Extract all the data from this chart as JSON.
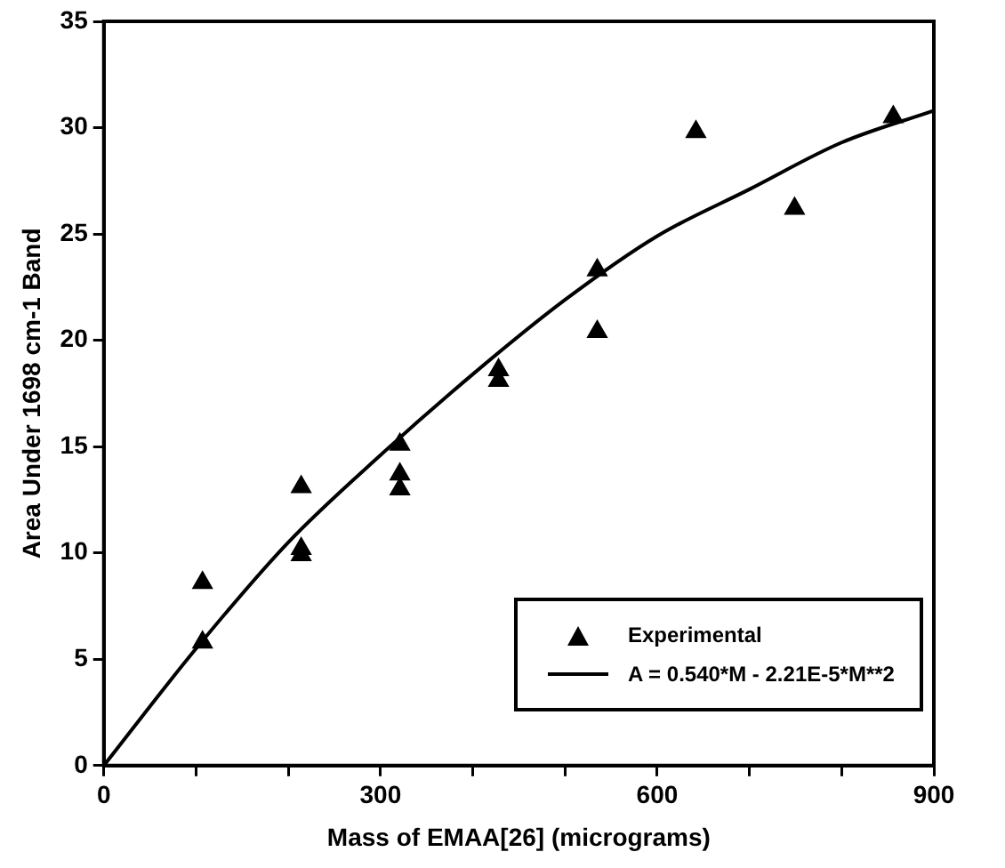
{
  "chart_data": {
    "type": "scatter",
    "xlabel": "Mass of EMAA[26] (micrograms)",
    "ylabel": "Area Under 1698 cm-1 Band",
    "xlim": [
      0,
      900
    ],
    "ylim": [
      0,
      35
    ],
    "xticks": [
      0,
      {
        "value": 100,
        "label": null
      },
      {
        "value": 200,
        "label": null
      },
      300,
      {
        "value": 400,
        "label": null
      },
      {
        "value": 500,
        "label": null
      },
      600,
      {
        "value": 700,
        "label": null
      },
      {
        "value": 800,
        "label": null
      },
      900
    ],
    "yticks": [
      0,
      5,
      10,
      15,
      20,
      25,
      30,
      35
    ],
    "legend": "bottom right",
    "grid": false,
    "series": [
      {
        "name": "Experimental",
        "marker": "triangle",
        "color": "#000000",
        "x": [
          107,
          107,
          214,
          214,
          214,
          321,
          321,
          321,
          428,
          428,
          535,
          535,
          642,
          749,
          856
        ],
        "values": [
          8.6,
          5.8,
          13.1,
          10.2,
          9.9,
          15.1,
          13.7,
          13.0,
          18.6,
          18.1,
          23.3,
          20.4,
          29.8,
          26.2,
          30.5
        ]
      },
      {
        "name": "A = 0.540*M - 2.21E-5*M**2",
        "type": "line",
        "marker": "none",
        "color": "#000000",
        "x": [
          0,
          100,
          200,
          300,
          400,
          500,
          600,
          700,
          800,
          900
        ],
        "values": [
          0,
          5.5,
          10.5,
          14.6,
          18.4,
          21.9,
          24.9,
          27.1,
          29.3,
          30.8
        ]
      }
    ]
  }
}
